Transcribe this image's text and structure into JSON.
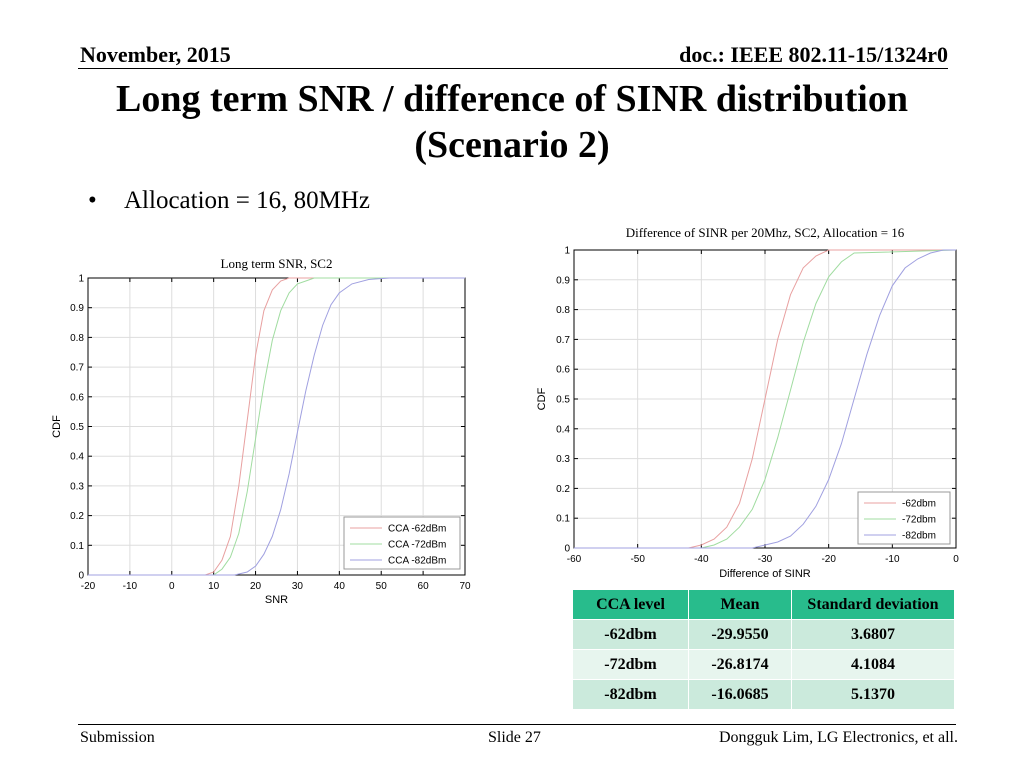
{
  "header": {
    "date": "November, 2015",
    "doc": "doc.: IEEE 802.11-15/1324r0"
  },
  "title": {
    "line1": "Long term SNR / difference of SINR distribution",
    "line2": "(Scenario 2)"
  },
  "bullet": {
    "symbol": "•",
    "text": "Allocation = 16, 80MHz"
  },
  "footer": {
    "left": "Submission",
    "middle": "Slide 27",
    "right": "Dongguk Lim, LG Electronics, et all."
  },
  "colors": {
    "series1": "#e8a0a0",
    "series2": "#a0dca0",
    "series3": "#a0a0e0",
    "grid": "#dddddd",
    "table_header": "#28bc8c",
    "table_row_dark": "#cbeadc",
    "table_row_light": "#e7f5ee"
  },
  "chart_data": [
    {
      "type": "line",
      "title": "Long term SNR, SC2",
      "xlabel": "SNR",
      "ylabel": "CDF",
      "xlim": [
        -20,
        70
      ],
      "ylim": [
        0,
        1
      ],
      "xticks": [
        -20,
        -10,
        0,
        10,
        20,
        30,
        40,
        50,
        60,
        70
      ],
      "yticks": [
        0,
        0.1,
        0.2,
        0.3,
        0.4,
        0.5,
        0.6,
        0.7,
        0.8,
        0.9,
        1
      ],
      "grid": true,
      "legend_position": "bottom-right",
      "series": [
        {
          "name": "CCA -62dBm",
          "color": "#e8a0a0",
          "x": [
            -20,
            8,
            10,
            12,
            14,
            16,
            18,
            20,
            22,
            24,
            26,
            28,
            30,
            70
          ],
          "y": [
            0,
            0.0,
            0.01,
            0.05,
            0.13,
            0.3,
            0.52,
            0.74,
            0.89,
            0.96,
            0.99,
            1.0,
            1.0,
            1.0
          ]
        },
        {
          "name": "CCA -72dBm",
          "color": "#a0dca0",
          "x": [
            -20,
            10,
            12,
            14,
            16,
            18,
            20,
            22,
            24,
            26,
            28,
            30,
            32,
            34,
            70
          ],
          "y": [
            0,
            0.0,
            0.02,
            0.06,
            0.14,
            0.28,
            0.46,
            0.64,
            0.79,
            0.89,
            0.95,
            0.98,
            0.99,
            1.0,
            1.0
          ]
        },
        {
          "name": "CCA -82dBm",
          "color": "#a0a0e0",
          "x": [
            -20,
            15,
            18,
            20,
            22,
            24,
            26,
            28,
            30,
            32,
            34,
            36,
            38,
            40,
            43,
            47,
            52,
            70
          ],
          "y": [
            0,
            0.0,
            0.01,
            0.03,
            0.07,
            0.13,
            0.22,
            0.34,
            0.48,
            0.62,
            0.74,
            0.84,
            0.91,
            0.95,
            0.98,
            0.995,
            1.0,
            1.0
          ]
        }
      ]
    },
    {
      "type": "line",
      "title": "Difference of SINR per 20Mhz, SC2, Allocation = 16",
      "xlabel": "Difference of SINR",
      "ylabel": "CDF",
      "xlim": [
        -60,
        0
      ],
      "ylim": [
        0,
        1
      ],
      "xticks": [
        -60,
        -50,
        -40,
        -30,
        -20,
        -10,
        0
      ],
      "yticks": [
        0,
        0.1,
        0.2,
        0.3,
        0.4,
        0.5,
        0.6,
        0.7,
        0.8,
        0.9,
        1
      ],
      "grid": true,
      "legend_position": "bottom-right",
      "series": [
        {
          "name": "-62dbm",
          "color": "#e8a0a0",
          "x": [
            -60,
            -42,
            -40,
            -38,
            -36,
            -34,
            -32,
            -30,
            -28,
            -26,
            -24,
            -22,
            -20,
            0
          ],
          "y": [
            0,
            0.0,
            0.01,
            0.03,
            0.07,
            0.15,
            0.3,
            0.5,
            0.7,
            0.85,
            0.94,
            0.98,
            1.0,
            1.0
          ]
        },
        {
          "name": "-72dbm",
          "color": "#a0dca0",
          "x": [
            -60,
            -40,
            -38,
            -36,
            -34,
            -32,
            -30,
            -28,
            -26,
            -24,
            -22,
            -20,
            -18,
            -16,
            0
          ],
          "y": [
            0,
            0.0,
            0.01,
            0.03,
            0.07,
            0.13,
            0.23,
            0.37,
            0.53,
            0.69,
            0.82,
            0.91,
            0.96,
            0.99,
            1.0
          ]
        },
        {
          "name": "-82dbm",
          "color": "#a0a0e0",
          "x": [
            -60,
            -32,
            -30,
            -28,
            -26,
            -24,
            -22,
            -20,
            -18,
            -16,
            -14,
            -12,
            -10,
            -8,
            -6,
            -4,
            -2,
            0
          ],
          "y": [
            0,
            0.0,
            0.01,
            0.02,
            0.04,
            0.08,
            0.14,
            0.23,
            0.35,
            0.5,
            0.65,
            0.78,
            0.88,
            0.94,
            0.97,
            0.99,
            1.0,
            1.0
          ]
        }
      ]
    }
  ],
  "table": {
    "headers": [
      "CCA level",
      "Mean",
      "Standard deviation"
    ],
    "rows": [
      [
        "-62dbm",
        "-29.9550",
        "3.6807"
      ],
      [
        "-72dbm",
        "-26.8174",
        "4.1084"
      ],
      [
        "-82dbm",
        "-16.0685",
        "5.1370"
      ]
    ]
  }
}
